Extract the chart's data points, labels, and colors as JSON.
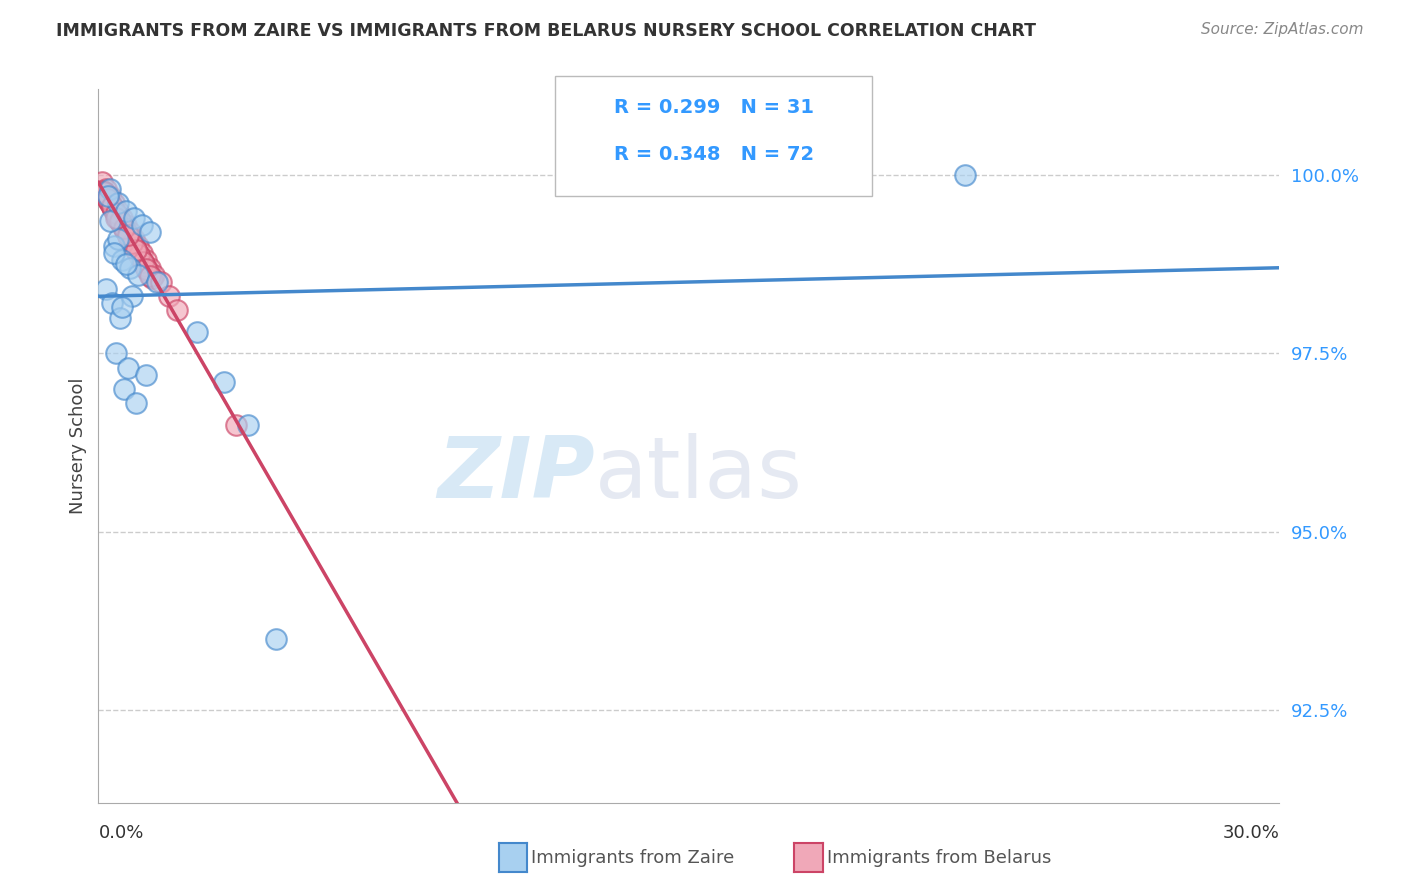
{
  "title": "IMMIGRANTS FROM ZAIRE VS IMMIGRANTS FROM BELARUS NURSERY SCHOOL CORRELATION CHART",
  "source": "Source: ZipAtlas.com",
  "ylabel": "Nursery School",
  "xmin": 0.0,
  "xmax": 30.0,
  "ymin": 91.2,
  "ymax": 101.2,
  "yticks": [
    92.5,
    95.0,
    97.5,
    100.0
  ],
  "ytick_labels": [
    "92.5%",
    "95.0%",
    "97.5%",
    "100.0%"
  ],
  "color_zaire": "#a8d0f0",
  "color_zaire_edge": "#4488cc",
  "color_belarus": "#f0a8b8",
  "color_belarus_edge": "#cc4466",
  "color_zaire_line": "#4488cc",
  "color_belarus_line": "#cc4466",
  "legend_zaire_r": "R = 0.299",
  "legend_zaire_n": "N = 31",
  "legend_belarus_r": "R = 0.348",
  "legend_belarus_n": "N = 72",
  "zaire_x": [
    0.3,
    0.5,
    0.7,
    0.9,
    1.1,
    1.3,
    0.4,
    0.6,
    0.8,
    1.0,
    1.5,
    0.2,
    0.35,
    0.55,
    2.5,
    0.45,
    0.75,
    1.2,
    0.65,
    0.95,
    3.8,
    0.25,
    0.5,
    22.0,
    0.4,
    3.2,
    0.85,
    0.6,
    4.5,
    0.3,
    0.7
  ],
  "zaire_y": [
    99.8,
    99.6,
    99.5,
    99.4,
    99.3,
    99.2,
    99.0,
    98.8,
    98.7,
    98.6,
    98.5,
    98.4,
    98.2,
    98.0,
    97.8,
    97.5,
    97.3,
    97.2,
    97.0,
    96.8,
    96.5,
    99.7,
    99.1,
    100.0,
    98.9,
    97.1,
    98.3,
    98.15,
    93.5,
    99.35,
    98.75
  ],
  "belarus_x": [
    0.1,
    0.2,
    0.3,
    0.4,
    0.5,
    0.6,
    0.7,
    0.8,
    0.9,
    1.0,
    1.1,
    1.2,
    1.3,
    1.4,
    0.15,
    0.25,
    0.35,
    0.45,
    0.55,
    0.65,
    0.75,
    0.85,
    0.95,
    1.05,
    1.15,
    1.25,
    1.35,
    0.18,
    0.28,
    0.38,
    0.48,
    0.58,
    0.68,
    0.78,
    0.88,
    0.98,
    1.08,
    1.18,
    0.12,
    0.22,
    0.32,
    0.42,
    0.52,
    0.62,
    0.72,
    0.82,
    0.92,
    1.02,
    1.12,
    1.22,
    1.32,
    0.16,
    0.26,
    0.36,
    0.46,
    0.56,
    0.66,
    0.76,
    0.86,
    0.96,
    1.6,
    1.8,
    2.0,
    0.14,
    0.24,
    0.34,
    0.44,
    0.54,
    0.64,
    0.74,
    3.5,
    0.44
  ],
  "belarus_y": [
    99.9,
    99.8,
    99.7,
    99.6,
    99.5,
    99.4,
    99.3,
    99.2,
    99.1,
    99.0,
    98.9,
    98.8,
    98.7,
    98.6,
    99.75,
    99.65,
    99.55,
    99.45,
    99.35,
    99.25,
    99.15,
    99.05,
    98.95,
    98.85,
    98.75,
    98.65,
    98.55,
    99.72,
    99.62,
    99.52,
    99.42,
    99.32,
    99.22,
    99.12,
    99.02,
    98.92,
    98.82,
    98.72,
    99.78,
    99.68,
    99.58,
    99.48,
    99.38,
    99.28,
    99.18,
    99.08,
    98.98,
    98.88,
    98.78,
    98.68,
    98.58,
    99.74,
    99.64,
    99.54,
    99.44,
    99.34,
    99.24,
    99.14,
    99.04,
    98.94,
    98.5,
    98.3,
    98.1,
    99.76,
    99.66,
    99.56,
    99.46,
    99.36,
    99.26,
    99.16,
    96.5,
    99.4
  ],
  "watermark_zip": "ZIP",
  "watermark_atlas": "atlas"
}
